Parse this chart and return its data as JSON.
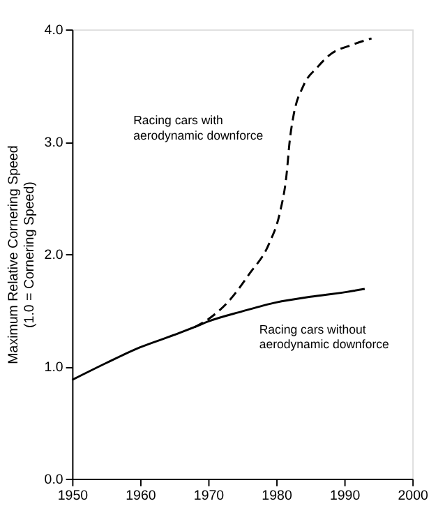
{
  "chart_data": {
    "type": "line",
    "ylabel": "Maximum Relative Cornering Speed\n(1.0 = Cornering Speed)",
    "xlim": [
      1950,
      2000
    ],
    "xticks": [
      1950,
      1960,
      1970,
      1980,
      1990,
      2000
    ],
    "ylim": [
      0,
      4
    ],
    "yticks": [
      {
        "value": 0,
        "label": "0.0"
      },
      {
        "value": 1,
        "label": "1.0"
      },
      {
        "value": 2,
        "label": "2.0"
      },
      {
        "value": 3,
        "label": "3.0"
      },
      {
        "value": 4,
        "label": "4.0"
      }
    ],
    "grid": false,
    "series": [
      {
        "color": "#000000",
        "line_style": "solid",
        "x": [
          1950,
          1955,
          1960,
          1965,
          1968,
          1970,
          1975,
          1980,
          1985,
          1990,
          1993
        ],
        "values": [
          0.88,
          1.03,
          1.17,
          1.28,
          1.35,
          1.4,
          1.49,
          1.57,
          1.62,
          1.66,
          1.69
        ]
      },
      {
        "color": "#000000",
        "line_style": "dashed",
        "x": [
          1968,
          1970,
          1973,
          1976,
          1979,
          1980.5,
          1981.5,
          1982,
          1982.5,
          1984,
          1986,
          1988,
          1991,
          1994
        ],
        "values": [
          1.35,
          1.42,
          1.58,
          1.82,
          2.1,
          2.36,
          2.7,
          3.02,
          3.22,
          3.5,
          3.66,
          3.78,
          3.86,
          3.92
        ]
      }
    ],
    "annotations": [
      "Racing cars with\naerodynamic downforce",
      "Racing cars without\naerodynamic downforce"
    ]
  }
}
